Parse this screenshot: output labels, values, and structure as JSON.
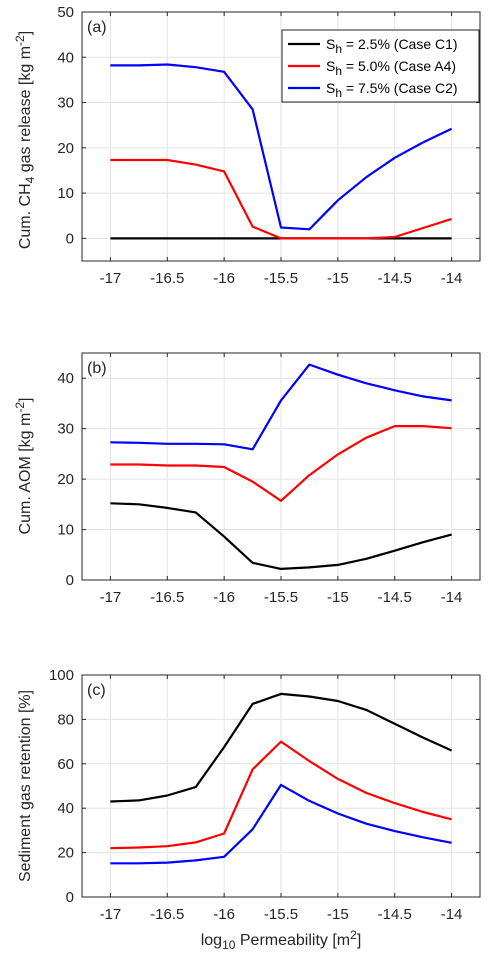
{
  "chart_data": [
    {
      "type": "line",
      "panel_label": "(a)",
      "ylabel": "Cum. CH4 gas release [kg m-2]",
      "ylabel_parts": {
        "pre": "Cum. CH",
        "sub": "4",
        "mid": " gas release [kg m",
        "sup": "-2",
        "post": "]"
      },
      "xlim": [
        -17.25,
        -13.75
      ],
      "ylim": [
        -5,
        50
      ],
      "xticks": [
        -17,
        -16.5,
        -16,
        -15.5,
        -15,
        -14.5,
        -14
      ],
      "xtick_labels": [
        "-17",
        "-16.5",
        "-16",
        "-15.5",
        "-15",
        "-14.5",
        "-14"
      ],
      "yticks": [
        0,
        10,
        20,
        30,
        40,
        50
      ],
      "ytick_labels": [
        "0",
        "10",
        "20",
        "30",
        "40",
        "50"
      ],
      "grid": true,
      "legend_position": "top-right",
      "x": [
        -17,
        -16.75,
        -16.5,
        -16.25,
        -16,
        -15.75,
        -15.5,
        -15.25,
        -15,
        -14.75,
        -14.5,
        -14.25,
        -14
      ],
      "series": [
        {
          "name": "Sh = 2.5% (Case C1)",
          "color": "#000000",
          "legend": {
            "pre": "S",
            "sub": "h",
            "post": " = 2.5% (Case C1)"
          },
          "values": [
            0,
            0,
            0,
            0,
            0,
            0,
            0,
            0,
            0,
            0,
            0,
            0,
            0
          ]
        },
        {
          "name": "Sh = 5.0% (Case A4)",
          "color": "#ff0000",
          "legend": {
            "pre": "S",
            "sub": "h",
            "post": " = 5.0% (Case A4)"
          },
          "values": [
            17.3,
            17.3,
            17.3,
            16.3,
            14.8,
            2.6,
            0,
            0,
            0,
            0,
            0.3,
            2.3,
            4.3
          ]
        },
        {
          "name": "Sh = 7.5% (Case C2)",
          "color": "#0000ff",
          "legend": {
            "pre": "S",
            "sub": "h",
            "post": " = 7.5% (Case C2)"
          },
          "values": [
            38.2,
            38.2,
            38.4,
            37.8,
            36.8,
            28.5,
            2.4,
            2.0,
            8.4,
            13.5,
            17.8,
            21.2,
            24.2
          ]
        }
      ]
    },
    {
      "type": "line",
      "panel_label": "(b)",
      "ylabel": "Cum. AOM [kg m-2]",
      "ylabel_parts": {
        "pre": "Cum. AOM [kg m",
        "sup": "-2",
        "post": "]"
      },
      "xlim": [
        -17.25,
        -13.75
      ],
      "ylim": [
        0,
        45
      ],
      "xticks": [
        -17,
        -16.5,
        -16,
        -15.5,
        -15,
        -14.5,
        -14
      ],
      "xtick_labels": [
        "-17",
        "-16.5",
        "-16",
        "-15.5",
        "-15",
        "-14.5",
        "-14"
      ],
      "yticks": [
        0,
        10,
        20,
        30,
        40
      ],
      "ytick_labels": [
        "0",
        "10",
        "20",
        "30",
        "40"
      ],
      "grid": true,
      "x": [
        -17,
        -16.75,
        -16.5,
        -16.25,
        -16,
        -15.75,
        -15.5,
        -15.25,
        -15,
        -14.75,
        -14.5,
        -14.25,
        -14
      ],
      "series": [
        {
          "color": "#000000",
          "values": [
            15.2,
            15.0,
            14.3,
            13.4,
            8.6,
            3.4,
            2.2,
            2.5,
            3.0,
            4.2,
            5.8,
            7.5,
            9.0
          ]
        },
        {
          "color": "#ff0000",
          "values": [
            22.9,
            22.9,
            22.7,
            22.7,
            22.4,
            19.5,
            15.7,
            20.8,
            24.9,
            28.2,
            30.5,
            30.5,
            30.1
          ]
        },
        {
          "color": "#0000ff",
          "values": [
            27.3,
            27.2,
            27.0,
            27.0,
            26.9,
            25.9,
            35.6,
            42.7,
            40.7,
            39.0,
            37.6,
            36.4,
            35.6
          ]
        }
      ]
    },
    {
      "type": "line",
      "panel_label": "(c)",
      "ylabel": "Sediment gas retention [%]",
      "xlabel": "log10 Permeability [m2]",
      "xlabel_parts": {
        "pre": "log",
        "sub": "10",
        "mid": " Permeability [m",
        "sup": "2",
        "post": "]"
      },
      "xlim": [
        -17.25,
        -13.75
      ],
      "ylim": [
        0,
        100
      ],
      "xticks": [
        -17,
        -16.5,
        -16,
        -15.5,
        -15,
        -14.5,
        -14
      ],
      "xtick_labels": [
        "-17",
        "-16.5",
        "-16",
        "-15.5",
        "-15",
        "-14.5",
        "-14"
      ],
      "yticks": [
        0,
        20,
        40,
        60,
        80,
        100
      ],
      "ytick_labels": [
        "0",
        "20",
        "40",
        "60",
        "80",
        "100"
      ],
      "grid": true,
      "x": [
        -17,
        -16.75,
        -16.5,
        -16.25,
        -16,
        -15.75,
        -15.5,
        -15.25,
        -15,
        -14.75,
        -14.5,
        -14.25,
        -14
      ],
      "series": [
        {
          "color": "#000000",
          "values": [
            43,
            43.5,
            45.7,
            49.5,
            67.5,
            87,
            91.5,
            90.3,
            88.3,
            84.3,
            78,
            71.8,
            66
          ]
        },
        {
          "color": "#ff0000",
          "values": [
            22,
            22.3,
            22.9,
            24.6,
            28.6,
            57.5,
            70,
            61.2,
            53.2,
            46.9,
            42.3,
            38.3,
            35
          ]
        },
        {
          "color": "#0000ff",
          "values": [
            15.2,
            15.2,
            15.5,
            16.5,
            18.1,
            30.5,
            50.5,
            43.3,
            37.6,
            33,
            29.7,
            26.9,
            24.4
          ]
        }
      ]
    }
  ]
}
